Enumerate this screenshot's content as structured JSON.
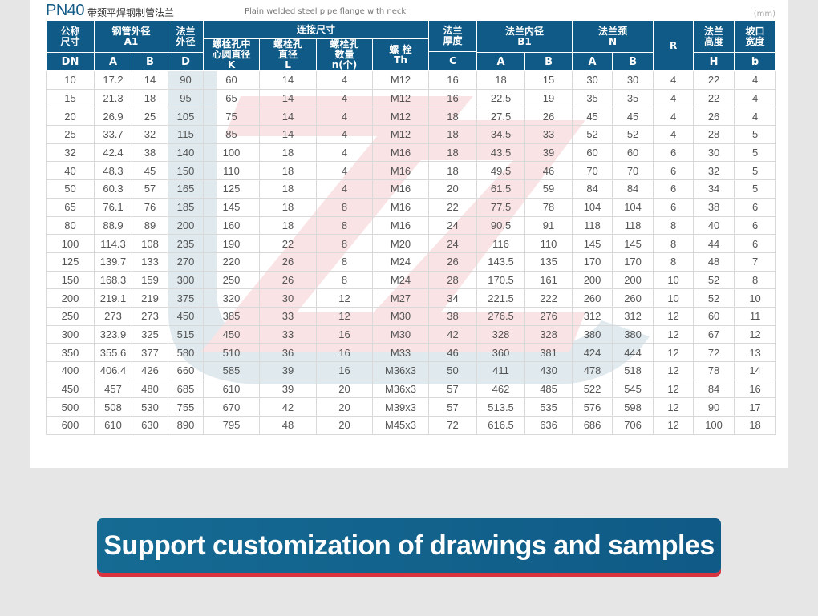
{
  "title": {
    "code": "PN40",
    "name_cn": "带颈平焊钢制管法兰",
    "name_en": "Plain welded steel pipe flange with neck",
    "unit": "(mm)"
  },
  "header": {
    "nominal": "公称\n尺寸",
    "pipe_od": "钢管外径\nA1",
    "flange_od": "法兰\n外径",
    "connection": "连接尺寸",
    "bolt_circle": "螺栓孔中\n心圆直径\nK",
    "hole_dia": "螺栓孔\n直径\nL",
    "bolt_count": "螺栓孔\n数量\nn(个)",
    "thread": "螺 栓\nTh",
    "thickness": "法兰\n厚度",
    "bore": "法兰内径\nB1",
    "neck": "法兰颈\nN",
    "radius": "R",
    "height": "法兰\n高度",
    "bevel": "坡口\n宽度"
  },
  "subheader": [
    "DN",
    "A",
    "B",
    "D",
    "C",
    "A",
    "B",
    "A",
    "B",
    "H",
    "b"
  ],
  "rows": [
    [
      "10",
      "17.2",
      "14",
      "90",
      "60",
      "14",
      "4",
      "M12",
      "16",
      "18",
      "15",
      "30",
      "30",
      "4",
      "22",
      "4"
    ],
    [
      "15",
      "21.3",
      "18",
      "95",
      "65",
      "14",
      "4",
      "M12",
      "16",
      "22.5",
      "19",
      "35",
      "35",
      "4",
      "22",
      "4"
    ],
    [
      "20",
      "26.9",
      "25",
      "105",
      "75",
      "14",
      "4",
      "M12",
      "18",
      "27.5",
      "26",
      "45",
      "45",
      "4",
      "26",
      "4"
    ],
    [
      "25",
      "33.7",
      "32",
      "115",
      "85",
      "14",
      "4",
      "M12",
      "18",
      "34.5",
      "33",
      "52",
      "52",
      "4",
      "28",
      "5"
    ],
    [
      "32",
      "42.4",
      "38",
      "140",
      "100",
      "18",
      "4",
      "M16",
      "18",
      "43.5",
      "39",
      "60",
      "60",
      "6",
      "30",
      "5"
    ],
    [
      "40",
      "48.3",
      "45",
      "150",
      "110",
      "18",
      "4",
      "M16",
      "18",
      "49.5",
      "46",
      "70",
      "70",
      "6",
      "32",
      "5"
    ],
    [
      "50",
      "60.3",
      "57",
      "165",
      "125",
      "18",
      "4",
      "M16",
      "20",
      "61.5",
      "59",
      "84",
      "84",
      "6",
      "34",
      "5"
    ],
    [
      "65",
      "76.1",
      "76",
      "185",
      "145",
      "18",
      "8",
      "M16",
      "22",
      "77.5",
      "78",
      "104",
      "104",
      "6",
      "38",
      "6"
    ],
    [
      "80",
      "88.9",
      "89",
      "200",
      "160",
      "18",
      "8",
      "M16",
      "24",
      "90.5",
      "91",
      "118",
      "118",
      "8",
      "40",
      "6"
    ],
    [
      "100",
      "114.3",
      "108",
      "235",
      "190",
      "22",
      "8",
      "M20",
      "24",
      "116",
      "110",
      "145",
      "145",
      "8",
      "44",
      "6"
    ],
    [
      "125",
      "139.7",
      "133",
      "270",
      "220",
      "26",
      "8",
      "M24",
      "26",
      "143.5",
      "135",
      "170",
      "170",
      "8",
      "48",
      "7"
    ],
    [
      "150",
      "168.3",
      "159",
      "300",
      "250",
      "26",
      "8",
      "M24",
      "28",
      "170.5",
      "161",
      "200",
      "200",
      "10",
      "52",
      "8"
    ],
    [
      "200",
      "219.1",
      "219",
      "375",
      "320",
      "30",
      "12",
      "M27",
      "34",
      "221.5",
      "222",
      "260",
      "260",
      "10",
      "52",
      "10"
    ],
    [
      "250",
      "273",
      "273",
      "450",
      "385",
      "33",
      "12",
      "M30",
      "38",
      "276.5",
      "276",
      "312",
      "312",
      "12",
      "60",
      "11"
    ],
    [
      "300",
      "323.9",
      "325",
      "515",
      "450",
      "33",
      "16",
      "M30",
      "42",
      "328",
      "328",
      "380",
      "380",
      "12",
      "67",
      "12"
    ],
    [
      "350",
      "355.6",
      "377",
      "580",
      "510",
      "36",
      "16",
      "M33",
      "46",
      "360",
      "381",
      "424",
      "444",
      "12",
      "72",
      "13"
    ],
    [
      "400",
      "406.4",
      "426",
      "660",
      "585",
      "39",
      "16",
      "M36x3",
      "50",
      "411",
      "430",
      "478",
      "518",
      "12",
      "78",
      "14"
    ],
    [
      "450",
      "457",
      "480",
      "685",
      "610",
      "39",
      "20",
      "M36x3",
      "57",
      "462",
      "485",
      "522",
      "545",
      "12",
      "84",
      "16"
    ],
    [
      "500",
      "508",
      "530",
      "755",
      "670",
      "42",
      "20",
      "M39x3",
      "57",
      "513.5",
      "535",
      "576",
      "598",
      "12",
      "90",
      "17"
    ],
    [
      "600",
      "610",
      "630",
      "890",
      "795",
      "48",
      "20",
      "M45x3",
      "72",
      "616.5",
      "636",
      "686",
      "706",
      "12",
      "100",
      "18"
    ]
  ],
  "banner": {
    "text": "Support customization of drawings and samples"
  },
  "colors": {
    "header_bg": "#0f5a86",
    "banner_shadow": "#d8333f",
    "page_bg": "#e6e6e6"
  }
}
